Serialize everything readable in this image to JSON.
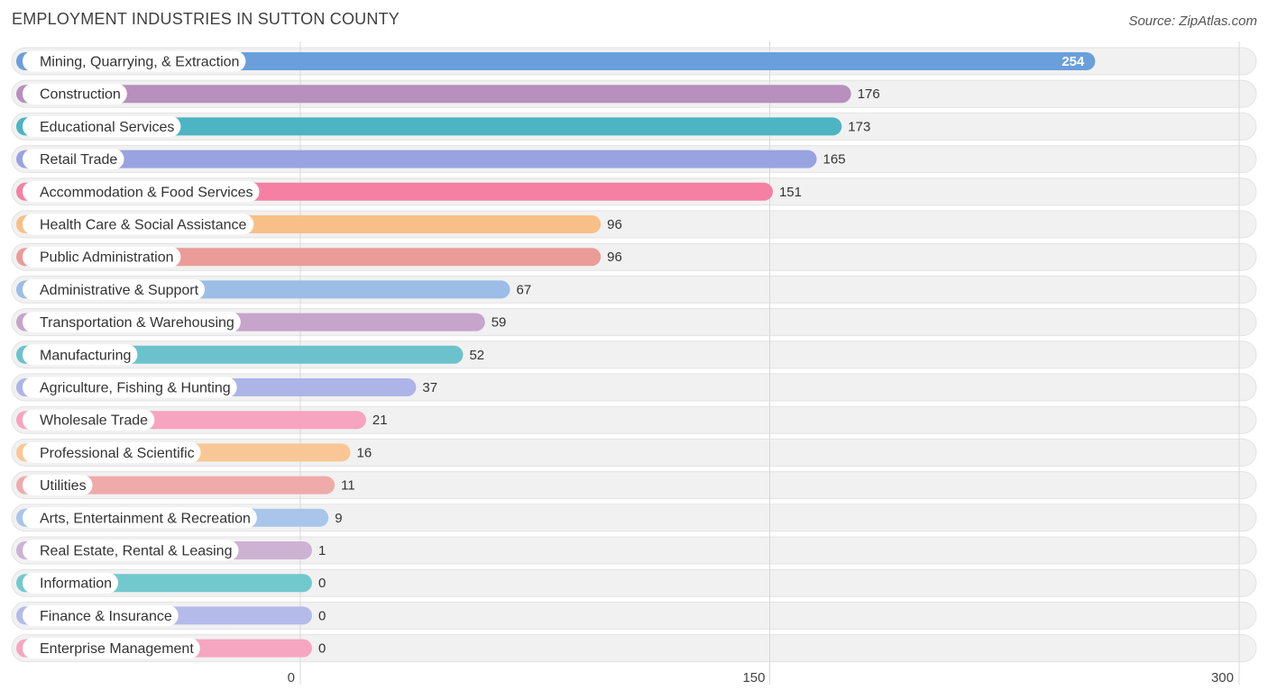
{
  "header": {
    "title": "EMPLOYMENT INDUSTRIES IN SUTTON COUNTY",
    "source": "Source: ZipAtlas.com"
  },
  "chart_data": {
    "type": "bar",
    "orientation": "horizontal",
    "title": "EMPLOYMENT INDUSTRIES IN SUTTON COUNTY",
    "xlabel": "",
    "ylabel": "",
    "xlim": [
      0,
      300
    ],
    "xticks": [
      0,
      150,
      300
    ],
    "grid": true,
    "categories": [
      "Mining, Quarrying, & Extraction",
      "Construction",
      "Educational Services",
      "Retail Trade",
      "Accommodation & Food Services",
      "Health Care & Social Assistance",
      "Public Administration",
      "Administrative & Support",
      "Transportation & Warehousing",
      "Manufacturing",
      "Agriculture, Fishing & Hunting",
      "Wholesale Trade",
      "Professional & Scientific",
      "Utilities",
      "Arts, Entertainment & Recreation",
      "Real Estate, Rental & Leasing",
      "Information",
      "Finance & Insurance",
      "Enterprise Management"
    ],
    "values": [
      254,
      176,
      173,
      165,
      151,
      96,
      96,
      67,
      59,
      52,
      37,
      21,
      16,
      11,
      9,
      1,
      0,
      0,
      0
    ],
    "colors": [
      "#6a9fdc",
      "#b88fbe",
      "#4db4c3",
      "#98a3e0",
      "#f580a3",
      "#f9bf88",
      "#eb9b98",
      "#9bbde6",
      "#c6a4cc",
      "#6bc2cc",
      "#adb4e8",
      "#f6a4bf",
      "#f9c796",
      "#efaaaa",
      "#a9c6ea",
      "#cdb2d4",
      "#72c9cd",
      "#b4bbe9",
      "#f6a6c0"
    ]
  }
}
